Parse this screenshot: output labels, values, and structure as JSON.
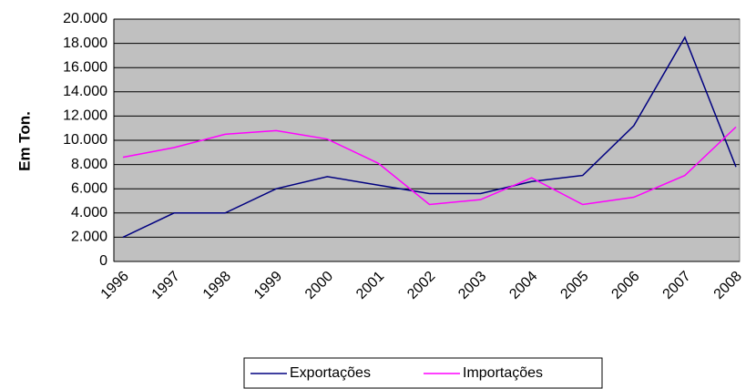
{
  "chart_data": {
    "type": "line",
    "ylabel": "Em Ton.",
    "categories": [
      "1996",
      "1997",
      "1998",
      "1999",
      "2000",
      "2001",
      "2002",
      "2003",
      "2004",
      "2005",
      "2006",
      "2007",
      "2008"
    ],
    "series": [
      {
        "name": "Exportações",
        "color": "#000080",
        "values": [
          2000,
          4000,
          4000,
          6000,
          7000,
          6300,
          5600,
          5600,
          6600,
          7100,
          11200,
          18500,
          7800
        ]
      },
      {
        "name": "Importações",
        "color": "#ff00ff",
        "values": [
          8600,
          9400,
          10500,
          10800,
          10100,
          8100,
          4700,
          5100,
          6900,
          4700,
          5300,
          7100,
          11100
        ]
      }
    ],
    "ylim": [
      0,
      20000
    ],
    "yticks": [
      0,
      {
        "value": 2000,
        "label": "2.000"
      },
      {
        "value": 4000,
        "label": "4.000"
      },
      {
        "value": 6000,
        "label": "6.000"
      },
      {
        "value": 8000,
        "label": "8.000"
      },
      {
        "value": 10000,
        "label": "10.000"
      },
      {
        "value": 12000,
        "label": "12.000"
      },
      {
        "value": 14000,
        "label": "14.000"
      },
      {
        "value": 16000,
        "label": "16.000"
      },
      {
        "value": 18000,
        "label": "18.000"
      },
      {
        "value": 20000,
        "label": "20.000"
      }
    ],
    "grid": true,
    "legend": "bottom",
    "plot_background": "#c0c0c0"
  }
}
